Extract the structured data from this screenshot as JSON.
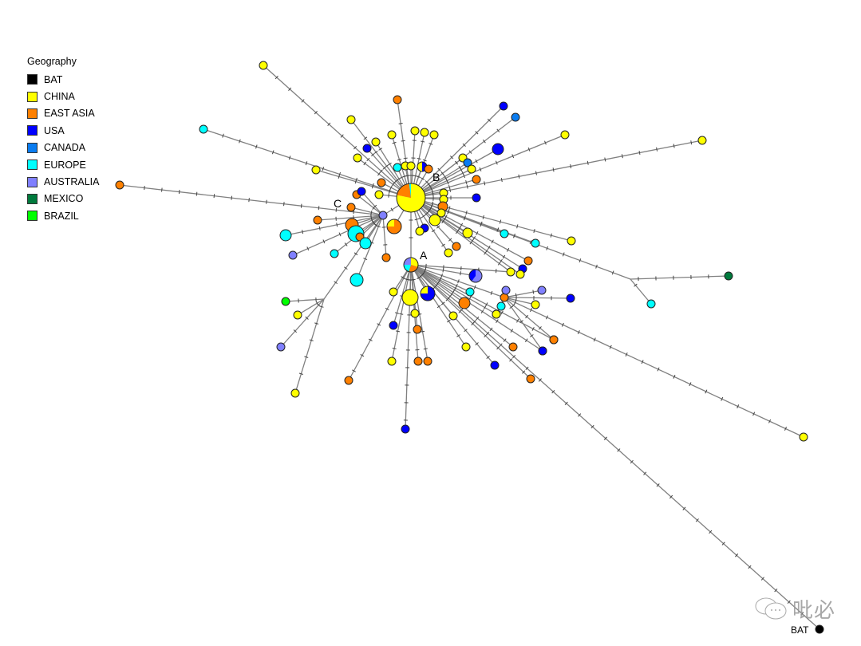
{
  "legend": {
    "title": "Geography",
    "items": [
      {
        "label": "BAT",
        "color": "#000000"
      },
      {
        "label": "CHINA",
        "color": "#FFFF00"
      },
      {
        "label": "EAST ASIA",
        "color": "#FF8000"
      },
      {
        "label": "USA",
        "color": "#0000FF"
      },
      {
        "label": "CANADA",
        "color": "#0A7CF0"
      },
      {
        "label": "EUROPE",
        "color": "#00FFFF"
      },
      {
        "label": "AUSTRALIA",
        "color": "#8080FF"
      },
      {
        "label": "MEXICO",
        "color": "#007A3D"
      },
      {
        "label": "BRAZIL",
        "color": "#00FF00"
      }
    ]
  },
  "labels": {
    "A": "A",
    "B": "B",
    "C": "C",
    "bat": "BAT"
  },
  "watermark": "吡必",
  "nodes": [
    {
      "id": "B",
      "parent": null,
      "regions": [
        [
          "CHINA",
          0.78
        ],
        [
          "EAST ASIA",
          0.2
        ],
        [
          "EUROPE",
          0.02
        ]
      ]
    },
    {
      "id": "A",
      "parent": "B",
      "regions": [
        [
          "CHINA",
          0.3
        ],
        [
          "EAST ASIA",
          0.25
        ],
        [
          "EUROPE",
          0.2
        ],
        [
          "AUSTRALIA",
          0.25
        ]
      ]
    },
    {
      "id": "C",
      "parent": "B",
      "regions": [
        [
          "AUSTRALIA",
          1
        ]
      ]
    },
    {
      "id": "J1",
      "parent": "B",
      "regions": []
    },
    {
      "id": "J2",
      "parent": "C",
      "regions": []
    },
    {
      "id": "H2",
      "parent": "A",
      "regions": [
        [
          "EAST ASIA",
          1
        ]
      ]
    },
    {
      "id": "BAT",
      "parent": "A",
      "regions": [
        [
          "BAT",
          1
        ]
      ]
    },
    {
      "id": "b1",
      "parent": "B",
      "regions": [
        [
          "CHINA",
          1
        ]
      ]
    },
    {
      "id": "b2",
      "parent": "B",
      "regions": [
        [
          "EUROPE",
          1
        ]
      ]
    },
    {
      "id": "b3",
      "parent": "B",
      "regions": [
        [
          "CHINA",
          1
        ]
      ]
    },
    {
      "id": "b4",
      "parent": "B",
      "regions": [
        [
          "USA",
          1
        ]
      ]
    },
    {
      "id": "b5",
      "parent": "B",
      "regions": [
        [
          "CHINA",
          1
        ]
      ]
    },
    {
      "id": "b6",
      "parent": "B",
      "regions": [
        [
          "CHINA",
          1
        ]
      ]
    },
    {
      "id": "b7",
      "parent": "B",
      "regions": [
        [
          "CHINA",
          1
        ]
      ]
    },
    {
      "id": "b8",
      "parent": "B",
      "regions": [
        [
          "EAST ASIA",
          1
        ]
      ]
    },
    {
      "id": "b9",
      "parent": "B",
      "regions": [
        [
          "CHINA",
          1
        ]
      ]
    },
    {
      "id": "b10",
      "parent": "B",
      "regions": [
        [
          "CHINA",
          1
        ]
      ]
    },
    {
      "id": "b11",
      "parent": "B",
      "regions": [
        [
          "CHINA",
          1
        ]
      ]
    },
    {
      "id": "b12",
      "parent": "B",
      "regions": [
        [
          "EUROPE",
          1
        ]
      ]
    },
    {
      "id": "b13",
      "parent": "B",
      "regions": [
        [
          "CHINA",
          1
        ]
      ]
    },
    {
      "id": "b14",
      "parent": "B",
      "regions": [
        [
          "CHINA",
          1
        ]
      ]
    },
    {
      "id": "b15",
      "parent": "B",
      "regions": [
        [
          "USA",
          0.5
        ],
        [
          "CHINA",
          0.5
        ]
      ]
    },
    {
      "id": "b16",
      "parent": "B",
      "regions": [
        [
          "EAST ASIA",
          1
        ]
      ]
    },
    {
      "id": "b17",
      "parent": "B",
      "regions": [
        [
          "USA",
          1
        ]
      ]
    },
    {
      "id": "b18",
      "parent": "B",
      "regions": [
        [
          "CANADA",
          1
        ]
      ]
    },
    {
      "id": "b19",
      "parent": "B",
      "regions": [
        [
          "USA",
          1
        ]
      ]
    },
    {
      "id": "b20",
      "parent": "B",
      "regions": [
        [
          "CHINA",
          1
        ]
      ]
    },
    {
      "id": "b21",
      "parent": "B",
      "regions": [
        [
          "CANADA",
          1
        ]
      ]
    },
    {
      "id": "b22",
      "parent": "B",
      "regions": [
        [
          "CHINA",
          1
        ]
      ]
    },
    {
      "id": "b23",
      "parent": "B",
      "regions": [
        [
          "CHINA",
          1
        ]
      ]
    },
    {
      "id": "b24",
      "parent": "B",
      "regions": [
        [
          "CHINA",
          1
        ]
      ]
    },
    {
      "id": "b25",
      "parent": "B",
      "regions": [
        [
          "EAST ASIA",
          1
        ]
      ]
    },
    {
      "id": "b26",
      "parent": "B",
      "regions": [
        [
          "USA",
          1
        ]
      ]
    },
    {
      "id": "b27",
      "parent": "B",
      "regions": [
        [
          "CHINA",
          1
        ]
      ]
    },
    {
      "id": "b28",
      "parent": "B",
      "regions": [
        [
          "CHINA",
          1
        ]
      ]
    },
    {
      "id": "b29",
      "parent": "B",
      "regions": [
        [
          "EAST ASIA",
          1
        ]
      ]
    },
    {
      "id": "b30",
      "parent": "B",
      "regions": [
        [
          "CHINA",
          1
        ]
      ]
    },
    {
      "id": "b31",
      "parent": "B",
      "regions": [
        [
          "CHINA",
          1
        ]
      ]
    },
    {
      "id": "b32",
      "parent": "B",
      "regions": [
        [
          "USA",
          1
        ]
      ]
    },
    {
      "id": "b33",
      "parent": "B",
      "regions": [
        [
          "CHINA",
          1
        ]
      ]
    },
    {
      "id": "b34",
      "parent": "B",
      "regions": [
        [
          "CHINA",
          1
        ]
      ]
    },
    {
      "id": "b35",
      "parent": "B",
      "regions": [
        [
          "EAST ASIA",
          1
        ]
      ]
    },
    {
      "id": "b36",
      "parent": "B",
      "regions": [
        [
          "CHINA",
          1
        ]
      ]
    },
    {
      "id": "b37",
      "parent": "B",
      "regions": [
        [
          "EUROPE",
          1
        ]
      ]
    },
    {
      "id": "b38",
      "parent": "B",
      "regions": [
        [
          "EUROPE",
          1
        ]
      ]
    },
    {
      "id": "b39",
      "parent": "B",
      "regions": [
        [
          "CHINA",
          1
        ]
      ]
    },
    {
      "id": "b40",
      "parent": "B",
      "regions": [
        [
          "EAST ASIA",
          1
        ]
      ]
    },
    {
      "id": "b41",
      "parent": "B",
      "regions": [
        [
          "USA",
          1
        ]
      ]
    },
    {
      "id": "b42",
      "parent": "B",
      "regions": [
        [
          "CHINA",
          1
        ]
      ]
    },
    {
      "id": "b43",
      "parent": "B",
      "regions": [
        [
          "CHINA",
          1
        ]
      ]
    },
    {
      "id": "b44",
      "parent": "B",
      "regions": [
        [
          "CHINA",
          1
        ]
      ]
    },
    {
      "id": "b45",
      "parent": "B",
      "regions": [
        [
          "EAST ASIA",
          1
        ]
      ]
    },
    {
      "id": "b46",
      "parent": "B",
      "regions": [
        [
          "CHINA",
          1
        ]
      ]
    },
    {
      "id": "b47",
      "parent": "B",
      "regions": [
        [
          "EAST ASIA",
          0.75
        ],
        [
          "CHINA",
          0.25
        ]
      ]
    },
    {
      "id": "j1a",
      "parent": "J1",
      "regions": [
        [
          "MEXICO",
          1
        ]
      ]
    },
    {
      "id": "j1b",
      "parent": "J1",
      "regions": [
        [
          "EUROPE",
          1
        ]
      ]
    },
    {
      "id": "c1",
      "parent": "C",
      "regions": [
        [
          "EAST ASIA",
          1
        ]
      ]
    },
    {
      "id": "c2",
      "parent": "C",
      "regions": [
        [
          "EAST ASIA",
          1
        ]
      ]
    },
    {
      "id": "c3",
      "parent": "C",
      "regions": [
        [
          "EAST ASIA",
          1
        ]
      ]
    },
    {
      "id": "c4",
      "parent": "C",
      "regions": [
        [
          "USA",
          1
        ]
      ]
    },
    {
      "id": "c5",
      "parent": "C",
      "regions": [
        [
          "EAST ASIA",
          1
        ]
      ]
    },
    {
      "id": "c6",
      "parent": "C",
      "regions": [
        [
          "EAST ASIA",
          1
        ]
      ]
    },
    {
      "id": "c7",
      "parent": "C",
      "regions": [
        [
          "EUROPE",
          1
        ]
      ]
    },
    {
      "id": "c8",
      "parent": "C",
      "regions": [
        [
          "EAST ASIA",
          1
        ]
      ]
    },
    {
      "id": "c9",
      "parent": "C",
      "regions": [
        [
          "EUROPE",
          1
        ]
      ]
    },
    {
      "id": "c10",
      "parent": "C",
      "regions": [
        [
          "EUROPE",
          1
        ]
      ]
    },
    {
      "id": "c11",
      "parent": "C",
      "regions": [
        [
          "AUSTRALIA",
          1
        ]
      ]
    },
    {
      "id": "c12",
      "parent": "C",
      "regions": [
        [
          "EUROPE",
          1
        ]
      ]
    },
    {
      "id": "c13",
      "parent": "C",
      "regions": [
        [
          "EUROPE",
          1
        ]
      ]
    },
    {
      "id": "c14",
      "parent": "C",
      "regions": [
        [
          "EAST ASIA",
          1
        ]
      ]
    },
    {
      "id": "j2a",
      "parent": "J2",
      "regions": [
        [
          "BRAZIL",
          1
        ]
      ]
    },
    {
      "id": "j2b",
      "parent": "J2",
      "regions": [
        [
          "CHINA",
          1
        ]
      ]
    },
    {
      "id": "j2c",
      "parent": "J2",
      "regions": [
        [
          "AUSTRALIA",
          1
        ]
      ]
    },
    {
      "id": "j2d",
      "parent": "J2",
      "regions": [
        [
          "CHINA",
          1
        ]
      ]
    },
    {
      "id": "a1",
      "parent": "A",
      "regions": [
        [
          "CHINA",
          1
        ]
      ]
    },
    {
      "id": "a2",
      "parent": "A",
      "regions": [
        [
          "USA",
          0.75
        ],
        [
          "CHINA",
          0.25
        ]
      ]
    },
    {
      "id": "a3",
      "parent": "A",
      "regions": [
        [
          "CHINA",
          1
        ]
      ]
    },
    {
      "id": "a4",
      "parent": "A",
      "regions": [
        [
          "EAST ASIA",
          1
        ]
      ]
    },
    {
      "id": "a5",
      "parent": "A",
      "regions": [
        [
          "USA",
          1
        ]
      ]
    },
    {
      "id": "a6",
      "parent": "A",
      "regions": [
        [
          "CHINA",
          1
        ]
      ]
    },
    {
      "id": "a7",
      "parent": "A",
      "regions": [
        [
          "USA",
          1
        ]
      ]
    },
    {
      "id": "a8",
      "parent": "A",
      "regions": [
        [
          "EAST ASIA",
          1
        ]
      ]
    },
    {
      "id": "a9",
      "parent": "A",
      "regions": [
        [
          "EAST ASIA",
          1
        ]
      ]
    },
    {
      "id": "a10",
      "parent": "A",
      "regions": [
        [
          "EAST ASIA",
          1
        ]
      ]
    },
    {
      "id": "a11",
      "parent": "A",
      "regions": [
        [
          "CHINA",
          1
        ]
      ]
    },
    {
      "id": "a12",
      "parent": "A",
      "regions": [
        [
          "CHINA",
          1
        ]
      ]
    },
    {
      "id": "a13",
      "parent": "A",
      "regions": [
        [
          "EAST ASIA",
          1
        ]
      ]
    },
    {
      "id": "a14",
      "parent": "A",
      "regions": [
        [
          "AUSTRALIA",
          0.6
        ],
        [
          "USA",
          0.4
        ]
      ]
    },
    {
      "id": "a15",
      "parent": "A",
      "regions": [
        [
          "EUROPE",
          1
        ]
      ]
    },
    {
      "id": "a16",
      "parent": "A",
      "regions": [
        [
          "USA",
          1
        ]
      ]
    },
    {
      "id": "a17",
      "parent": "A",
      "regions": [
        [
          "EAST ASIA",
          1
        ]
      ]
    },
    {
      "id": "a18",
      "parent": "A",
      "regions": [
        [
          "EAST ASIA",
          1
        ]
      ]
    },
    {
      "id": "a19",
      "parent": "A",
      "regions": [
        [
          "CHINA",
          1
        ]
      ]
    },
    {
      "id": "a20",
      "parent": "A",
      "regions": [
        [
          "EAST ASIA",
          1
        ]
      ]
    },
    {
      "id": "a21",
      "parent": "A",
      "regions": [
        [
          "USA",
          1
        ]
      ]
    },
    {
      "id": "a22",
      "parent": "A",
      "regions": [
        [
          "CHINA",
          1
        ]
      ]
    },
    {
      "id": "a23",
      "parent": "A",
      "regions": [
        [
          "CHINA",
          1
        ]
      ]
    },
    {
      "id": "h1",
      "parent": "H2",
      "regions": [
        [
          "AUSTRALIA",
          1
        ]
      ]
    },
    {
      "id": "h2",
      "parent": "H2",
      "regions": [
        [
          "AUSTRALIA",
          1
        ]
      ]
    },
    {
      "id": "h3",
      "parent": "H2",
      "regions": [
        [
          "CHINA",
          1
        ]
      ]
    },
    {
      "id": "h4",
      "parent": "H2",
      "regions": [
        [
          "USA",
          1
        ]
      ]
    },
    {
      "id": "h5",
      "parent": "H2",
      "regions": [
        [
          "EUROPE",
          1
        ]
      ]
    },
    {
      "id": "h6",
      "parent": "H2",
      "regions": [
        [
          "CHINA",
          1
        ]
      ]
    },
    {
      "id": "h7",
      "parent": "H2",
      "regions": [
        [
          "USA",
          1
        ]
      ]
    },
    {
      "id": "h8",
      "parent": "H2",
      "regions": [
        [
          "EAST ASIA",
          1
        ]
      ]
    },
    {
      "id": "h9",
      "parent": "H2",
      "regions": [
        [
          "CHINA",
          1
        ]
      ]
    }
  ]
}
